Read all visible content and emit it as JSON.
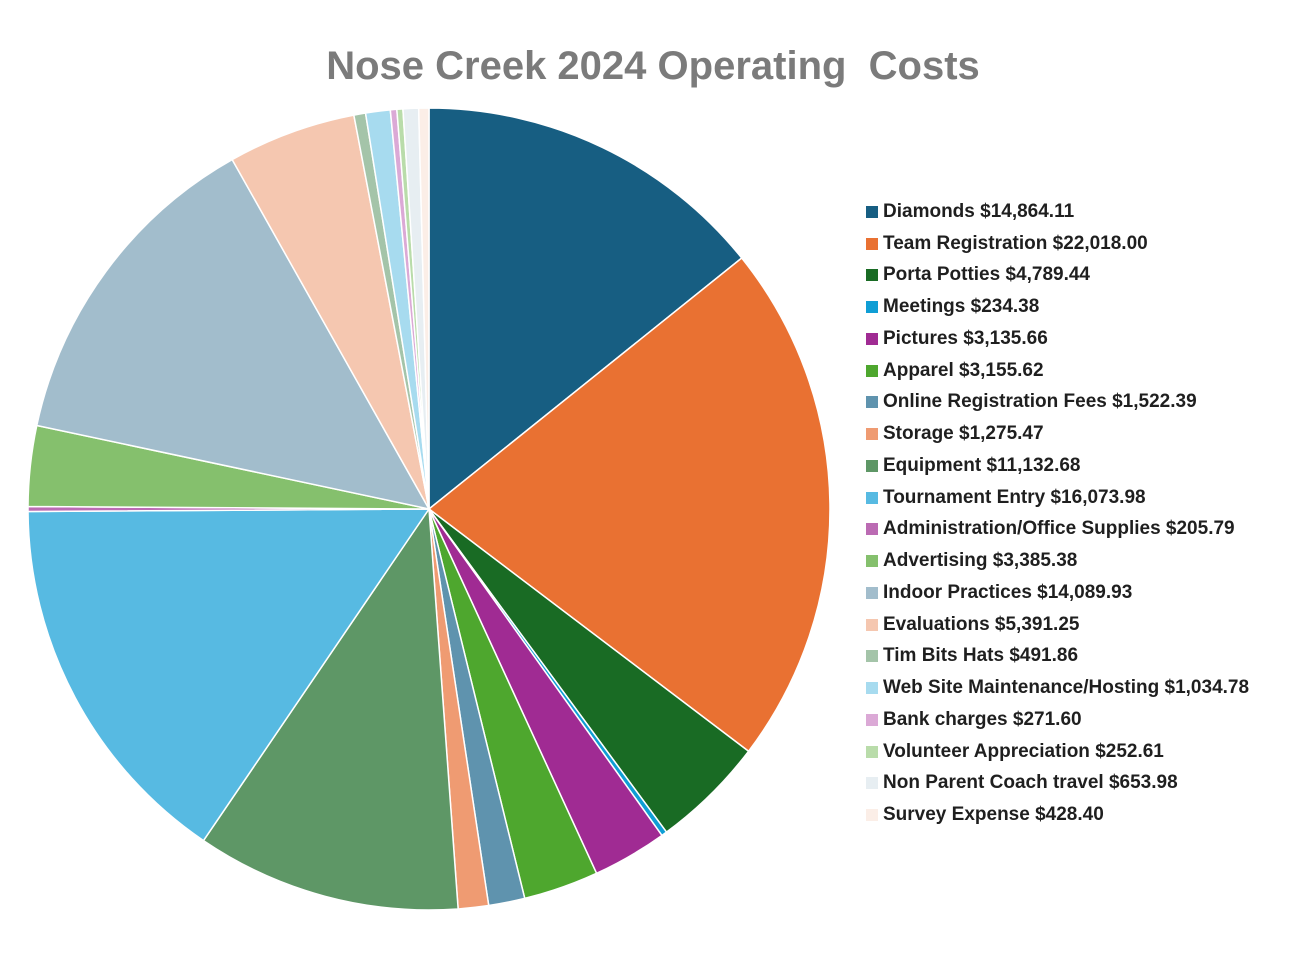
{
  "chart_data": {
    "type": "pie",
    "title": "Nose Creek 2024 Operating  Costs",
    "start_angle_deg": 0,
    "direction": "clockwise",
    "legend_position": "right",
    "slices": [
      {
        "label": "Diamonds $14,864.11",
        "name": "Diamonds",
        "value": 14864.11,
        "color": "#175e82"
      },
      {
        "label": "Team Registration $22,018.00",
        "name": "Team Registration",
        "value": 22018.0,
        "color": "#e97132"
      },
      {
        "label": "Porta Potties $4,789.44",
        "name": "Porta Potties",
        "value": 4789.44,
        "color": "#196b24"
      },
      {
        "label": "Meetings $234.38",
        "name": "Meetings",
        "value": 234.38,
        "color": "#0f9ed5"
      },
      {
        "label": "Pictures $3,135.66",
        "name": "Pictures",
        "value": 3135.66,
        "color": "#a02b93"
      },
      {
        "label": "Apparel $3,155.62",
        "name": "Apparel",
        "value": 3155.62,
        "color": "#4ea72e"
      },
      {
        "label": "Online Registration Fees $1,522.39",
        "name": "Online Registration Fees",
        "value": 1522.39,
        "color": "#5f93ae"
      },
      {
        "label": "Storage $1,275.47",
        "name": "Storage",
        "value": 1275.47,
        "color": "#ef9b72"
      },
      {
        "label": "Equipment $11,132.68",
        "name": "Equipment",
        "value": 11132.68,
        "color": "#5e9766"
      },
      {
        "label": "Tournament Entry $16,073.98",
        "name": "Tournament Entry",
        "value": 16073.98,
        "color": "#57bae2"
      },
      {
        "label": "Administration/Office Supplies $205.79",
        "name": "Administration/Office Supplies",
        "value": 205.79,
        "color": "#bb6bb3"
      },
      {
        "label": "Advertising $3,385.38",
        "name": "Advertising",
        "value": 3385.38,
        "color": "#85c06d"
      },
      {
        "label": "Indoor Practices $14,089.93",
        "name": "Indoor Practices",
        "value": 14089.93,
        "color": "#a2bdcc"
      },
      {
        "label": "Evaluations $5,391.25",
        "name": "Evaluations",
        "value": 5391.25,
        "color": "#f5c7b0"
      },
      {
        "label": "Tim Bits Hats $491.86",
        "name": "Tim Bits Hats",
        "value": 491.86,
        "color": "#a4c4a9"
      },
      {
        "label": "Web Site Maintenance/Hosting $1,034.78",
        "name": "Web Site Maintenance/Hosting",
        "value": 1034.78,
        "color": "#a7dbef"
      },
      {
        "label": "Bank charges $271.60",
        "name": "Bank charges",
        "value": 271.6,
        "color": "#dba9d6"
      },
      {
        "label": "Volunteer Appreciation $252.61",
        "name": "Volunteer Appreciation",
        "value": 252.61,
        "color": "#b9dcaa"
      },
      {
        "label": "Non Parent Coach travel $653.98",
        "name": "Non Parent Coach travel",
        "value": 653.98,
        "color": "#e7eef2"
      },
      {
        "label": "Survey Expense $428.40",
        "name": "Survey Expense",
        "value": 428.4,
        "color": "#fbeee7"
      }
    ]
  }
}
